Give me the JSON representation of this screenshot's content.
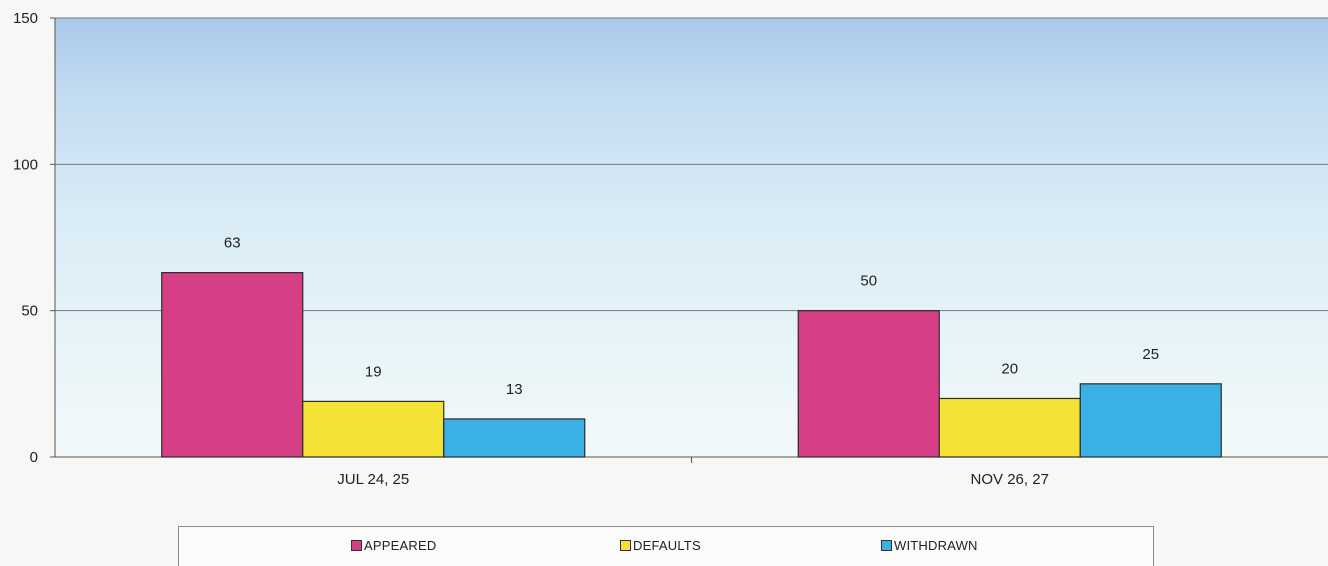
{
  "chart_data": {
    "type": "bar",
    "categories": [
      "JUL 24, 25",
      "NOV 26, 27"
    ],
    "series": [
      {
        "name": "APPEARED",
        "values": [
          63,
          50
        ],
        "color": "#d63f85"
      },
      {
        "name": "DEFAULTS",
        "values": [
          19,
          20
        ],
        "color": "#f4e234"
      },
      {
        "name": "WITHDRAWN",
        "values": [
          13,
          25
        ],
        "color": "#3ab0e4"
      }
    ],
    "ylim": [
      0,
      150
    ],
    "yticks": [
      0,
      50,
      100,
      150
    ],
    "grid": true,
    "legend_position": "bottom",
    "plot_background": "gradient blue-to-white",
    "title": "",
    "xlabel": "",
    "ylabel": ""
  }
}
